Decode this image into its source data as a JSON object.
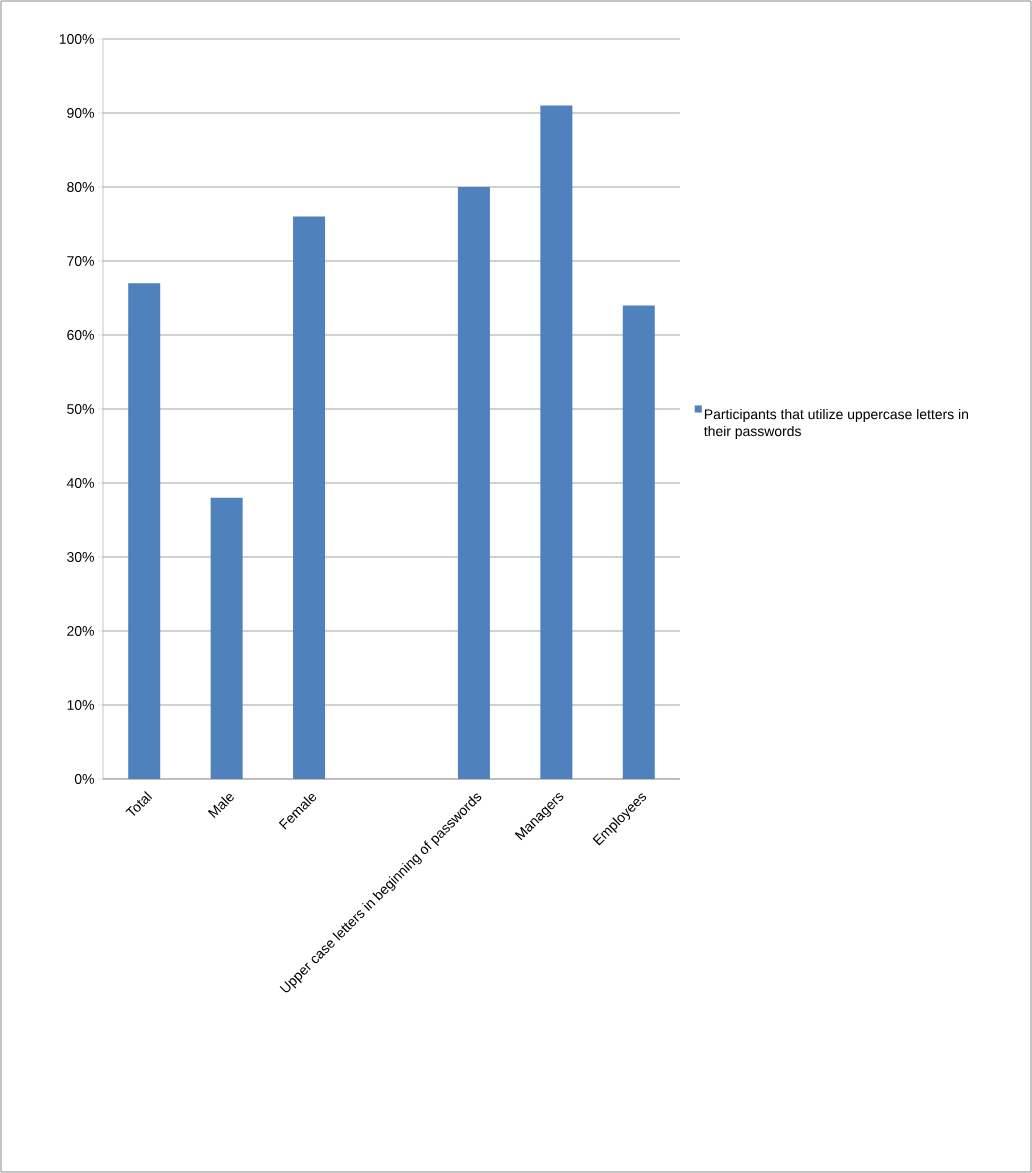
{
  "chart_data": {
    "type": "bar",
    "categories": [
      "Total",
      "Male",
      "Female",
      null,
      "Upper case letters in beginning of passwords",
      "Managers",
      "Employees"
    ],
    "series": [
      {
        "name": "Participants that utilize uppercase letters in their passwords",
        "color": "#4f81bd",
        "values": [
          67,
          38,
          76,
          null,
          80,
          91,
          64
        ]
      }
    ],
    "ylim": [
      0,
      100
    ],
    "yticks": [
      {
        "value": 0,
        "label": "0%"
      },
      {
        "value": 10,
        "label": "10%"
      },
      {
        "value": 20,
        "label": "20%"
      },
      {
        "value": 30,
        "label": "30%"
      },
      {
        "value": 40,
        "label": "40%"
      },
      {
        "value": 50,
        "label": "50%"
      },
      {
        "value": 60,
        "label": "60%"
      },
      {
        "value": 70,
        "label": "70%"
      },
      {
        "value": 80,
        "label": "80%"
      },
      {
        "value": 90,
        "label": "90%"
      },
      {
        "value": 100,
        "label": "100%"
      }
    ],
    "grid": "y",
    "legend": "right"
  }
}
